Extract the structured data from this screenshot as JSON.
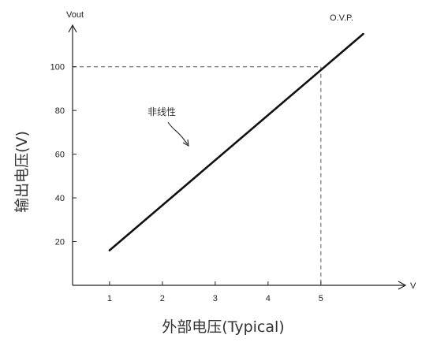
{
  "chart_data": {
    "type": "line",
    "ylabel": "输出电压(V)",
    "xlabel": "外部电压(Typical)",
    "y_axis_unit": "Vout",
    "x_axis_unit": "V",
    "x_ticks": [
      1,
      2,
      3,
      4,
      5
    ],
    "y_ticks": [
      20,
      40,
      60,
      80,
      100
    ],
    "xlim": [
      0.3,
      6.6
    ],
    "ylim": [
      0,
      119
    ],
    "series": [
      {
        "x": [
          1.0,
          5.8
        ],
        "y": [
          16,
          115
        ]
      }
    ],
    "annotations": {
      "nonlinear_text": "非线性",
      "ovp_text": "O.V.P."
    },
    "reference_lines": {
      "x": 5,
      "y": 100
    },
    "grid": false
  }
}
